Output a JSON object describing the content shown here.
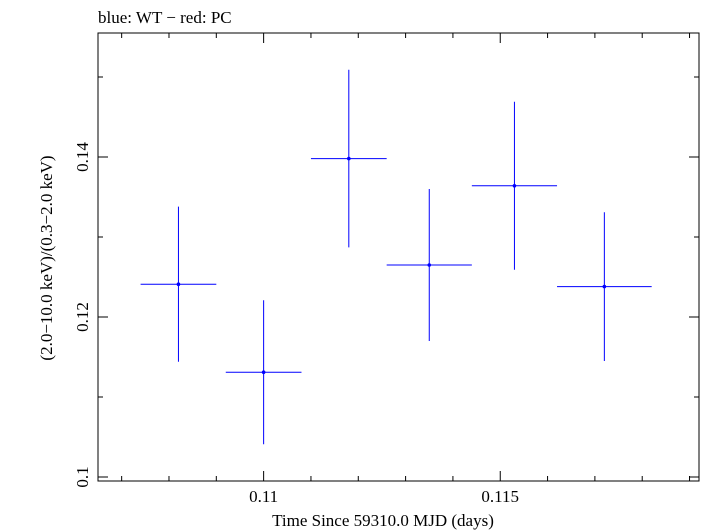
{
  "chart_data": {
    "type": "scatter",
    "title": "blue: WT − red: PC",
    "xlabel": "Time Since 59310.0 MJD (days)",
    "ylabel": "(2.0−10.0 keV)/(0.3−2.0 keV)",
    "xlim": [
      0.1065,
      0.1192
    ],
    "ylim": [
      0.0995,
      0.1555
    ],
    "x_ticks": [
      {
        "value": 0.11,
        "label": "0.11"
      },
      {
        "value": 0.115,
        "label": "0.115"
      }
    ],
    "y_ticks": [
      {
        "value": 0.1,
        "label": "0.1"
      },
      {
        "value": 0.12,
        "label": "0.12"
      },
      {
        "value": 0.14,
        "label": "0.14"
      }
    ],
    "grid": false,
    "series": [
      {
        "name": "WT",
        "color": "#0000ff",
        "points": [
          {
            "x": 0.1082,
            "xerr": 0.0008,
            "y": 0.1241,
            "yerr": 0.0097
          },
          {
            "x": 0.11,
            "xerr": 0.0008,
            "y": 0.1131,
            "yerr": 0.009
          },
          {
            "x": 0.1118,
            "xerr": 0.0008,
            "y": 0.1398,
            "yerr": 0.0111
          },
          {
            "x": 0.1135,
            "xerr": 0.0009,
            "y": 0.1265,
            "yerr": 0.0095
          },
          {
            "x": 0.1153,
            "xerr": 0.0009,
            "y": 0.1364,
            "yerr": 0.0105
          },
          {
            "x": 0.1172,
            "xerr": 0.001,
            "y": 0.1238,
            "yerr": 0.0093
          }
        ]
      }
    ]
  }
}
